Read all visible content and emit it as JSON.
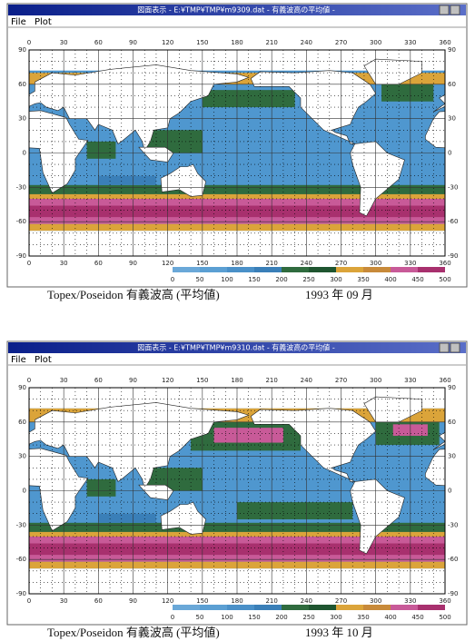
{
  "panels": [
    {
      "window_title": "図面表示 - E:¥TMP¥TMP¥m9309.dat - 有義波高の平均値 -",
      "menu": [
        "File",
        "Plot"
      ],
      "lon_ticks": [
        0,
        30,
        60,
        90,
        120,
        150,
        180,
        210,
        240,
        270,
        300,
        330,
        360
      ],
      "lat_ticks": [
        90,
        60,
        30,
        0,
        -30,
        -60,
        -90
      ],
      "colorbar": {
        "labels": [
          0,
          50,
          100,
          150,
          200,
          250,
          300,
          350,
          400,
          450,
          500
        ],
        "colors": [
          "#6aa8d8",
          "#5b9fd3",
          "#4a90c8",
          "#3a7fb8",
          "#2f6b3e",
          "#1f5530",
          "#dba43a",
          "#c88a3a",
          "#c85a98",
          "#a8306e"
        ]
      },
      "caption": "Topex/Poseidon 有義波高 (平均値)",
      "date": "1993 年 09 月"
    },
    {
      "window_title": "図面表示 - E:¥TMP¥TMP¥m9310.dat - 有義波高の平均値 -",
      "menu": [
        "File",
        "Plot"
      ],
      "lon_ticks": [
        0,
        30,
        60,
        90,
        120,
        150,
        180,
        210,
        240,
        270,
        300,
        330,
        360
      ],
      "lat_ticks": [
        90,
        60,
        30,
        0,
        -30,
        -60,
        -90
      ],
      "colorbar": {
        "labels": [
          0,
          50,
          100,
          150,
          200,
          250,
          300,
          350,
          400,
          450,
          500
        ],
        "colors": [
          "#6aa8d8",
          "#5b9fd3",
          "#4a90c8",
          "#3a7fb8",
          "#2f6b3e",
          "#1f5530",
          "#dba43a",
          "#c88a3a",
          "#c85a98",
          "#a8306e"
        ]
      },
      "caption": "Topex/Poseidon 有義波高 (平均値)",
      "date": "1993 年 10 月"
    }
  ]
}
